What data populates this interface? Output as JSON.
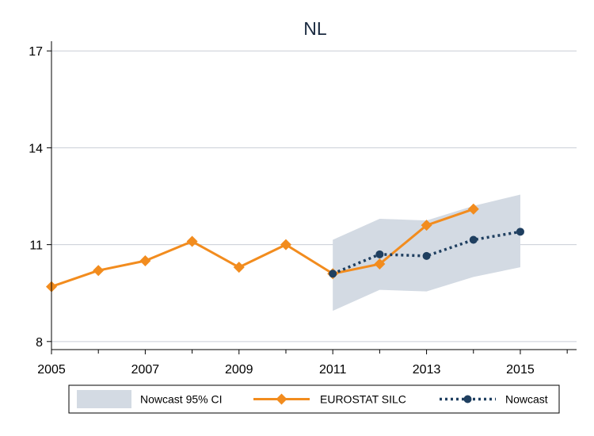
{
  "chart_data": {
    "type": "line",
    "title": "NL",
    "xlabel": "",
    "ylabel": "",
    "xlim": [
      2005,
      2016.2
    ],
    "ylim": [
      7.75,
      17.3
    ],
    "x_ticks": [
      2005,
      2007,
      2009,
      2011,
      2013,
      2015
    ],
    "x_tick_labels": [
      "2005",
      "2007",
      "2009",
      "2011",
      "2013",
      "2015"
    ],
    "y_ticks": [
      8,
      11,
      14,
      17
    ],
    "y_tick_labels": [
      "8",
      "11",
      "14",
      "17"
    ],
    "grid": true,
    "legend_position": "bottom",
    "series": [
      {
        "name": "Nowcast 95% CI",
        "kind": "band",
        "color": "#d3dae3",
        "x": [
          2011,
          2012,
          2013,
          2014,
          2015
        ],
        "lower": [
          8.95,
          9.6,
          9.55,
          10.0,
          10.3
        ],
        "upper": [
          11.15,
          11.8,
          11.75,
          12.2,
          12.55
        ]
      },
      {
        "name": "EUROSTAT SILC",
        "kind": "line",
        "color": "#f28c1e",
        "marker": "diamond",
        "x": [
          2005,
          2006,
          2007,
          2008,
          2009,
          2010,
          2011,
          2012,
          2013,
          2014
        ],
        "y": [
          9.7,
          10.2,
          10.5,
          11.1,
          10.3,
          11.0,
          10.1,
          10.4,
          11.6,
          12.1
        ]
      },
      {
        "name": "Nowcast",
        "kind": "line",
        "color": "#1f3f60",
        "marker": "circle",
        "dash": "dot",
        "x": [
          2011,
          2012,
          2013,
          2014,
          2015
        ],
        "y": [
          10.1,
          10.7,
          10.65,
          11.15,
          11.4
        ]
      }
    ]
  }
}
